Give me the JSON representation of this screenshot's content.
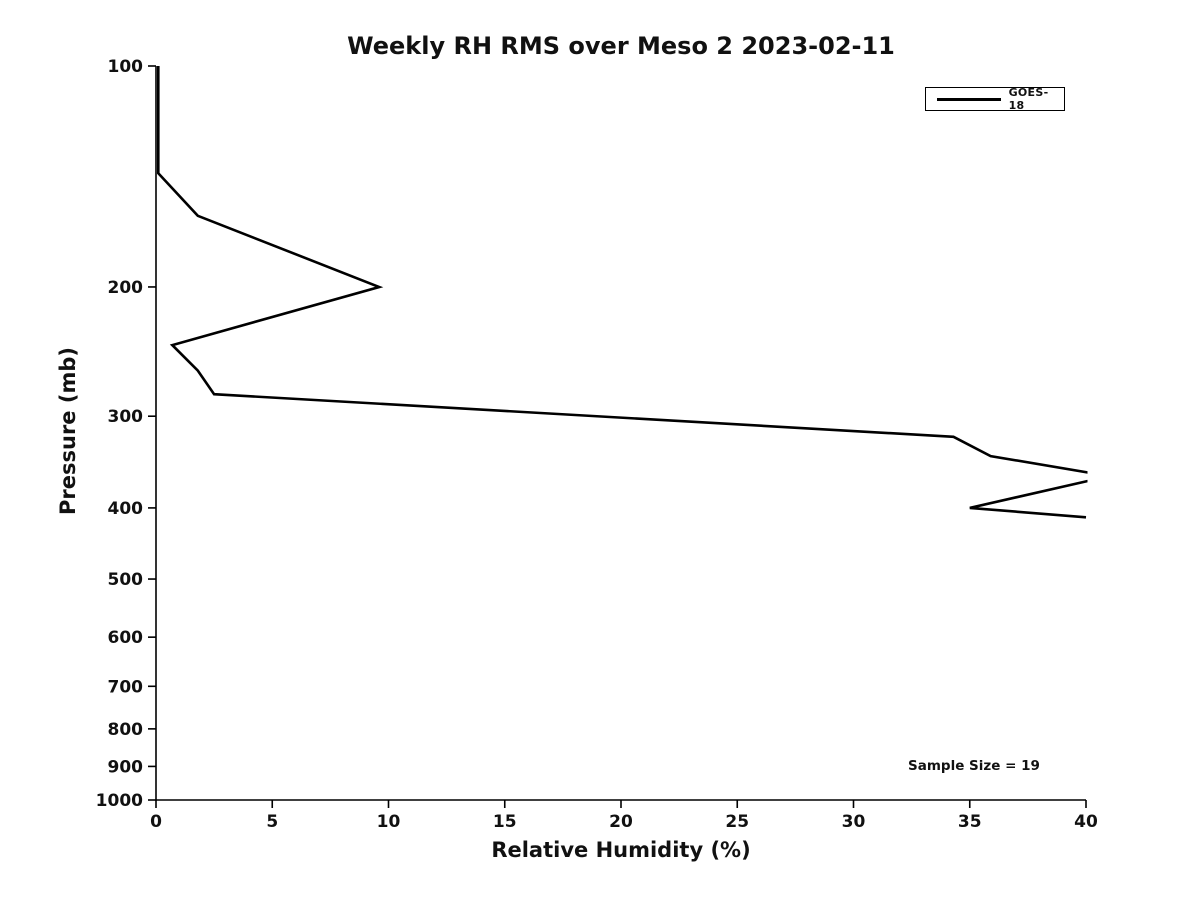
{
  "figure": {
    "background": "#ffffff",
    "text_color": "#111111",
    "axis_color": "#000000"
  },
  "chart_data": {
    "type": "line",
    "title": "Weekly RH RMS over Meso 2 2023-02-11",
    "xlabel": "Relative Humidity (%)",
    "ylabel": "Pressure (mb)",
    "xlim": [
      0,
      40
    ],
    "ylim": [
      100,
      1000
    ],
    "y_scale": "log",
    "y_orientation": "inverted (100 mb at top, 1000 mb at bottom)",
    "grid": false,
    "xticks": [
      0,
      5,
      10,
      15,
      20,
      25,
      30,
      35,
      40
    ],
    "yticks": [
      100,
      200,
      300,
      400,
      500,
      600,
      700,
      800,
      900,
      1000
    ],
    "legend_position": "upper right",
    "series": [
      {
        "name": "GOES-18",
        "color": "#000000",
        "line_width": 2.6,
        "clipped_at_xlim": true,
        "points_rh_pressure": [
          [
            0.1,
            100
          ],
          [
            0.1,
            140
          ],
          [
            1.8,
            160
          ],
          [
            9.6,
            200
          ],
          [
            0.7,
            240
          ],
          [
            1.8,
            260
          ],
          [
            2.5,
            280
          ],
          [
            34.3,
            320
          ],
          [
            35.9,
            340
          ],
          [
            41.0,
            362
          ],
          [
            35.0,
            400
          ],
          [
            40.0,
            412
          ]
        ]
      }
    ],
    "annotations": [
      {
        "text": "Sample Size = 19",
        "position": "lower right inside axes"
      }
    ]
  }
}
